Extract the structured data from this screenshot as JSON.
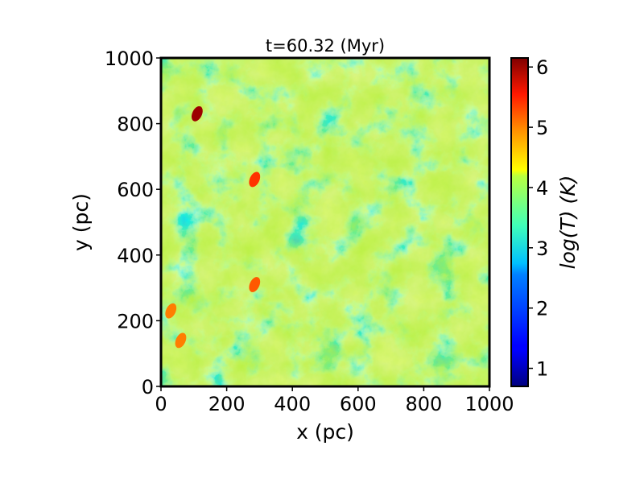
{
  "chart_data": {
    "type": "heatmap",
    "title": "t=60.32 (Myr)",
    "xlabel": "x (pc)",
    "ylabel": "y (pc)",
    "colorbar_label": "log(T) (K)",
    "xlim": [
      0,
      1000
    ],
    "ylim": [
      0,
      1000
    ],
    "xticks": [
      0,
      200,
      400,
      600,
      800,
      1000
    ],
    "yticks": [
      0,
      200,
      400,
      600,
      800,
      1000
    ],
    "colorbar_range": [
      0.7,
      6.15
    ],
    "colorbar_ticks": [
      1,
      2,
      3,
      4,
      5,
      6
    ],
    "colormap": "jet",
    "grid": false,
    "hot_spots": [
      {
        "x": 110,
        "y": 830,
        "logT": 6.0
      },
      {
        "x": 285,
        "y": 630,
        "logT": 5.2
      },
      {
        "x": 285,
        "y": 310,
        "logT": 5.0
      },
      {
        "x": 30,
        "y": 230,
        "logT": 4.8
      },
      {
        "x": 60,
        "y": 140,
        "logT": 4.8
      }
    ]
  }
}
